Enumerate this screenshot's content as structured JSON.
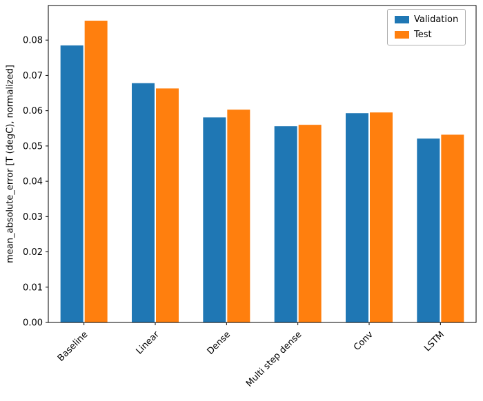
{
  "chart_data": {
    "type": "bar",
    "categories": [
      "Baseline",
      "Linear",
      "Dense",
      "Multi step dense",
      "Conv",
      "LSTM"
    ],
    "series": [
      {
        "name": "Validation",
        "color": "#1f77b4",
        "values": [
          0.0785,
          0.0678,
          0.0581,
          0.0556,
          0.0593,
          0.0521
        ]
      },
      {
        "name": "Test",
        "color": "#ff7f0e",
        "values": [
          0.0855,
          0.0663,
          0.0603,
          0.056,
          0.0595,
          0.0532
        ]
      }
    ],
    "title": "",
    "xlabel": "",
    "ylabel": "mean_absolute_error [T (degC), normalized]",
    "ylim": [
      0,
      0.0898
    ],
    "yticks": [
      0.0,
      0.01,
      0.02,
      0.03,
      0.04,
      0.05,
      0.06,
      0.07,
      0.08
    ],
    "ytick_format_decimals": 2,
    "xtick_rotation": 45,
    "grid": false,
    "legend_position": "upper right"
  }
}
